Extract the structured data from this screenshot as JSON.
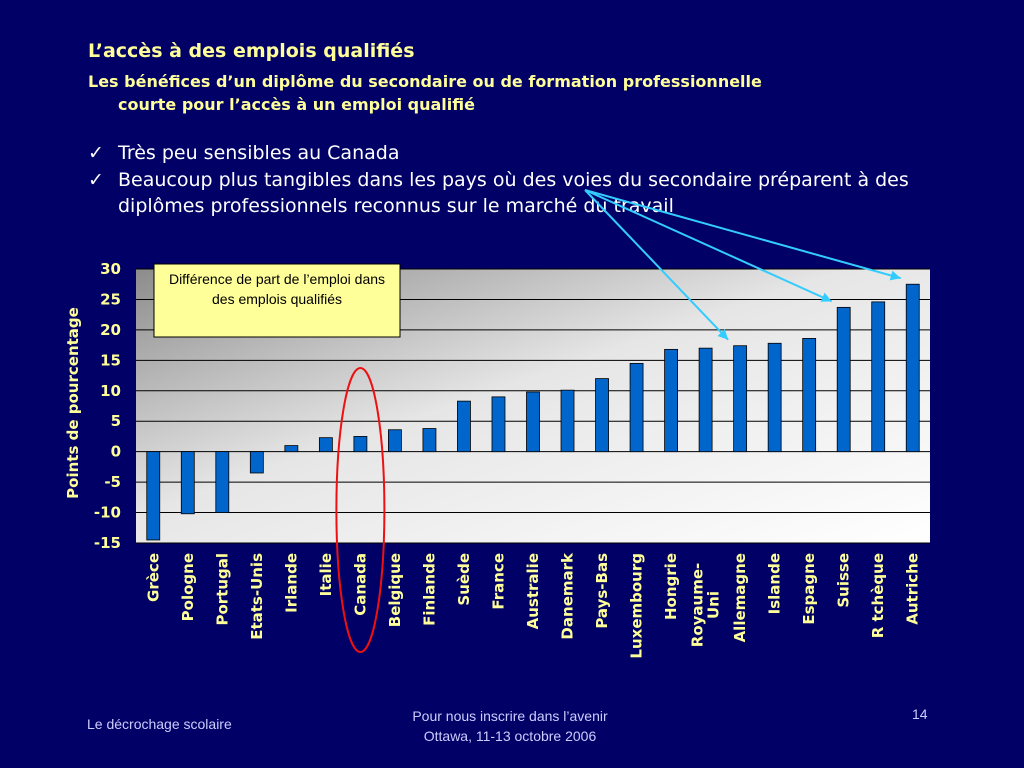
{
  "slide": {
    "title": "L’accès à des emplois qualifiés",
    "subtitle_line1": "Les bénéfices d’un diplôme du secondaire ou de formation professionnelle",
    "subtitle_line2": "courte pour l’accès à un emploi qualifié",
    "bullets": [
      "Très peu sensibles au Canada",
      "Beaucoup plus tangibles dans les pays où des voies du secondaire préparent à des diplômes professionnels reconnus sur le marché du travail"
    ],
    "footer_left": "Le décrochage scolaire",
    "footer_center_line1": "Pour nous inscrire dans l’avenir",
    "footer_center_line2": "Ottawa, 11-13 octobre 2006",
    "page_number": "14"
  },
  "chart_data": {
    "type": "bar",
    "title": "",
    "annotation": "Différence de part de l’emploi dans des emplois qualifiés",
    "xlabel": "",
    "ylabel": "Points de pourcentage",
    "ylim": [
      -15,
      30
    ],
    "yticks": [
      30,
      25,
      20,
      15,
      10,
      5,
      0,
      -5,
      -10,
      -15
    ],
    "grid": true,
    "bar_color": "#0066cc",
    "highlight_color": "#ee1111",
    "arrow_color": "#33ccff",
    "highlighted_category": "Canada",
    "categories": [
      "Grèce",
      "Pologne",
      "Portugal",
      "Etats-Unis",
      "Irlande",
      "Italie",
      "Canada",
      "Belgique",
      "Finlande",
      "Suède",
      "France",
      "Australie",
      "Danemark",
      "Pays-Bas",
      "Luxembourg",
      "Hongrie",
      "Royaume-Uni",
      "Allemagne",
      "Islande",
      "Espagne",
      "Suisse",
      "R tchèque",
      "Autriche"
    ],
    "category_lines": [
      [
        "Grèce"
      ],
      [
        "Pologne"
      ],
      [
        "Portugal"
      ],
      [
        "Etats-Unis"
      ],
      [
        "Irlande"
      ],
      [
        "Italie"
      ],
      [
        "Canada"
      ],
      [
        "Belgique"
      ],
      [
        "Finlande"
      ],
      [
        "Suède"
      ],
      [
        "France"
      ],
      [
        "Australie"
      ],
      [
        "Danemark"
      ],
      [
        "Pays-Bas"
      ],
      [
        "Luxembourg"
      ],
      [
        "Hongrie"
      ],
      [
        "Royaume-",
        "Uni"
      ],
      [
        "Allemagne"
      ],
      [
        "Islande"
      ],
      [
        "Espagne"
      ],
      [
        "Suisse"
      ],
      [
        "R tchèque"
      ],
      [
        "Autriche"
      ]
    ],
    "values": [
      -14.5,
      -10.2,
      -10.0,
      -3.5,
      1.0,
      2.3,
      2.5,
      3.6,
      3.8,
      8.3,
      9.0,
      9.8,
      10.1,
      12.0,
      14.5,
      16.8,
      17.0,
      17.4,
      17.8,
      18.6,
      23.7,
      24.6,
      27.5
    ],
    "arrow_targets": [
      "Allemagne",
      "Suisse",
      "Autriche"
    ]
  }
}
